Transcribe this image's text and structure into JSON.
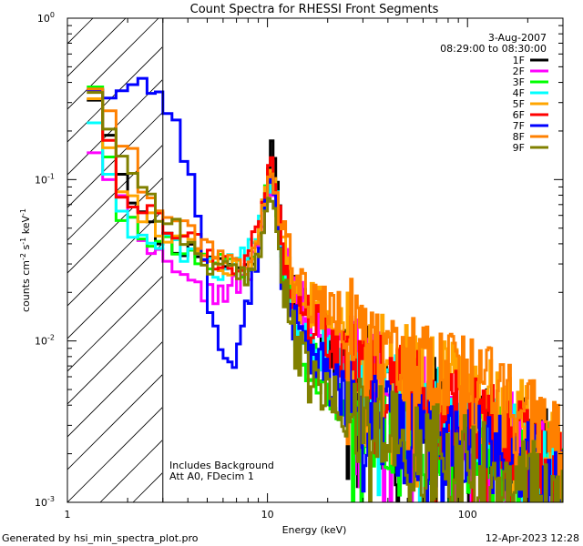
{
  "chart_data": {
    "type": "line",
    "title": "Count Spectra for RHESSI Front Segments",
    "xlabel": "Energy (keV)",
    "ylabel_main": "counts cm",
    "ylabel_exp1": "-2",
    "ylabel_mid": " s",
    "ylabel_exp2": "-1",
    "ylabel_end": " keV",
    "ylabel_exp3": "-1",
    "xscale": "log",
    "yscale": "log",
    "xlim": [
      1,
      300
    ],
    "ylim": [
      0.001,
      1
    ],
    "x_ticks": [
      {
        "value": 1,
        "label": "1"
      },
      {
        "value": 10,
        "label": "10"
      },
      {
        "value": 100,
        "label": "100"
      }
    ],
    "y_ticks": [
      {
        "value": 0.001,
        "base": "10",
        "exp": "-3"
      },
      {
        "value": 0.01,
        "base": "10",
        "exp": "-2"
      },
      {
        "value": 0.1,
        "base": "10",
        "exp": "-1"
      },
      {
        "value": 1,
        "base": "10",
        "exp": "0"
      }
    ],
    "hatched_region": [
      1,
      3
    ],
    "date": "3-Aug-2007",
    "time_range": "08:29:00 to 08:30:00",
    "annotations": [
      "Includes Background",
      "Att A0, FDecim 1"
    ],
    "legend_position": "top-right",
    "series": [
      {
        "name": "1F",
        "color": "#000000",
        "seed": 11,
        "jitter": 1.0,
        "bump": 1.0,
        "points": [
          [
            1.25,
            0.35
          ],
          [
            1.5,
            0.33
          ],
          [
            1.75,
            0.13
          ],
          [
            2.0,
            0.1
          ],
          [
            2.5,
            0.05
          ],
          [
            3.0,
            0.045
          ],
          [
            3.5,
            0.04
          ],
          [
            4.0,
            0.036
          ],
          [
            5.0,
            0.036
          ],
          [
            6.0,
            0.03
          ],
          [
            7.0,
            0.03
          ],
          [
            8.0,
            0.027
          ],
          [
            9.0,
            0.045
          ],
          [
            10.0,
            0.11
          ],
          [
            10.5,
            0.15
          ],
          [
            11.0,
            0.11
          ],
          [
            12.0,
            0.032
          ],
          [
            14.0,
            0.016
          ],
          [
            16.0,
            0.014
          ],
          [
            20.0,
            0.01
          ],
          [
            25.0,
            0.0075
          ],
          [
            30.0,
            0.0065
          ],
          [
            40.0,
            0.0055
          ],
          [
            50.0,
            0.0048
          ],
          [
            60.0,
            0.0042
          ],
          [
            80.0,
            0.004
          ],
          [
            100.0,
            0.0035
          ],
          [
            150.0,
            0.0025
          ],
          [
            200.0,
            0.0022
          ],
          [
            250.0,
            0.0019
          ],
          [
            300.0,
            0.0016
          ]
        ]
      },
      {
        "name": "2F",
        "color": "#ff00ff",
        "seed": 22,
        "jitter": 1.0,
        "bump": 0.85,
        "points": [
          [
            1.25,
            0.16
          ],
          [
            1.5,
            0.16
          ],
          [
            1.75,
            0.075
          ],
          [
            2.0,
            0.065
          ],
          [
            2.5,
            0.045
          ],
          [
            3.0,
            0.03
          ],
          [
            3.5,
            0.025
          ],
          [
            4.0,
            0.022
          ],
          [
            5.0,
            0.02
          ],
          [
            6.0,
            0.02
          ],
          [
            7.0,
            0.022
          ],
          [
            8.0,
            0.025
          ],
          [
            9.0,
            0.04
          ],
          [
            10.0,
            0.08
          ],
          [
            10.5,
            0.1
          ],
          [
            11.0,
            0.08
          ],
          [
            12.0,
            0.03
          ],
          [
            14.0,
            0.018
          ],
          [
            16.0,
            0.015
          ],
          [
            20.0,
            0.011
          ],
          [
            25.0,
            0.008
          ],
          [
            30.0,
            0.007
          ],
          [
            40.0,
            0.0058
          ],
          [
            50.0,
            0.005
          ],
          [
            60.0,
            0.0044
          ],
          [
            80.0,
            0.004
          ],
          [
            100.0,
            0.0036
          ],
          [
            150.0,
            0.0026
          ],
          [
            200.0,
            0.0022
          ],
          [
            250.0,
            0.0018
          ],
          [
            300.0,
            0.0015
          ]
        ]
      },
      {
        "name": "3F",
        "color": "#00ff00",
        "seed": 33,
        "jitter": 1.0,
        "bump": 0.8,
        "points": [
          [
            1.25,
            0.42
          ],
          [
            1.5,
            0.4
          ],
          [
            1.75,
            0.06
          ],
          [
            2.0,
            0.055
          ],
          [
            2.5,
            0.042
          ],
          [
            3.0,
            0.04
          ],
          [
            3.5,
            0.037
          ],
          [
            4.0,
            0.034
          ],
          [
            5.0,
            0.03
          ],
          [
            6.0,
            0.03
          ],
          [
            7.0,
            0.028
          ],
          [
            8.0,
            0.025
          ],
          [
            9.0,
            0.04
          ],
          [
            10.0,
            0.09
          ],
          [
            10.5,
            0.11
          ],
          [
            11.0,
            0.08
          ],
          [
            12.0,
            0.03
          ],
          [
            14.0,
            0.012
          ],
          [
            16.0,
            0.008
          ],
          [
            20.0,
            0.005
          ],
          [
            25.0,
            0.004
          ],
          [
            30.0,
            0.0035
          ],
          [
            40.0,
            0.003
          ],
          [
            50.0,
            0.0028
          ],
          [
            60.0,
            0.0026
          ],
          [
            80.0,
            0.0025
          ],
          [
            100.0,
            0.0024
          ],
          [
            150.0,
            0.002
          ],
          [
            200.0,
            0.0018
          ],
          [
            250.0,
            0.0016
          ],
          [
            300.0,
            0.0014
          ]
        ]
      },
      {
        "name": "4F",
        "color": "#00ffff",
        "seed": 44,
        "jitter": 1.0,
        "bump": 0.9,
        "points": [
          [
            1.25,
            0.25
          ],
          [
            1.5,
            0.24
          ],
          [
            1.75,
            0.06
          ],
          [
            2.0,
            0.05
          ],
          [
            2.5,
            0.04
          ],
          [
            3.0,
            0.04
          ],
          [
            3.5,
            0.037
          ],
          [
            4.0,
            0.035
          ],
          [
            5.0,
            0.03
          ],
          [
            6.0,
            0.028
          ],
          [
            7.0,
            0.03
          ],
          [
            8.0,
            0.035
          ],
          [
            9.0,
            0.05
          ],
          [
            10.0,
            0.09
          ],
          [
            10.5,
            0.11
          ],
          [
            11.0,
            0.09
          ],
          [
            12.0,
            0.03
          ],
          [
            14.0,
            0.013
          ],
          [
            16.0,
            0.011
          ],
          [
            20.0,
            0.008
          ],
          [
            25.0,
            0.006
          ],
          [
            30.0,
            0.005
          ],
          [
            40.0,
            0.0045
          ],
          [
            50.0,
            0.004
          ],
          [
            60.0,
            0.0036
          ],
          [
            80.0,
            0.0033
          ],
          [
            100.0,
            0.003
          ],
          [
            150.0,
            0.0025
          ],
          [
            200.0,
            0.002
          ],
          [
            250.0,
            0.0017
          ],
          [
            300.0,
            0.0015
          ]
        ]
      },
      {
        "name": "5F",
        "color": "#ffa500",
        "seed": 55,
        "jitter": 1.0,
        "bump": 0.9,
        "points": [
          [
            1.25,
            0.35
          ],
          [
            1.5,
            0.34
          ],
          [
            1.75,
            0.09
          ],
          [
            2.0,
            0.08
          ],
          [
            2.5,
            0.06
          ],
          [
            3.0,
            0.05
          ],
          [
            3.5,
            0.045
          ],
          [
            4.0,
            0.04
          ],
          [
            5.0,
            0.035
          ],
          [
            6.0,
            0.03
          ],
          [
            7.0,
            0.028
          ],
          [
            8.0,
            0.028
          ],
          [
            9.0,
            0.045
          ],
          [
            10.0,
            0.09
          ],
          [
            10.5,
            0.11
          ],
          [
            11.0,
            0.09
          ],
          [
            12.0,
            0.035
          ],
          [
            14.0,
            0.02
          ],
          [
            16.0,
            0.017
          ],
          [
            20.0,
            0.013
          ],
          [
            25.0,
            0.01
          ],
          [
            30.0,
            0.009
          ],
          [
            40.0,
            0.0075
          ],
          [
            50.0,
            0.0065
          ],
          [
            60.0,
            0.0055
          ],
          [
            80.0,
            0.005
          ],
          [
            100.0,
            0.0045
          ],
          [
            150.0,
            0.0035
          ],
          [
            200.0,
            0.0028
          ],
          [
            250.0,
            0.0022
          ],
          [
            300.0,
            0.0018
          ]
        ]
      },
      {
        "name": "6F",
        "color": "#ff0000",
        "seed": 66,
        "jitter": 1.0,
        "bump": 0.9,
        "points": [
          [
            1.25,
            0.4
          ],
          [
            1.5,
            0.38
          ],
          [
            1.75,
            0.1
          ],
          [
            2.0,
            0.085
          ],
          [
            2.5,
            0.06
          ],
          [
            3.0,
            0.055
          ],
          [
            3.5,
            0.05
          ],
          [
            4.0,
            0.045
          ],
          [
            5.0,
            0.035
          ],
          [
            6.0,
            0.03
          ],
          [
            7.0,
            0.03
          ],
          [
            8.0,
            0.032
          ],
          [
            9.0,
            0.05
          ],
          [
            10.0,
            0.1
          ],
          [
            10.5,
            0.12
          ],
          [
            11.0,
            0.1
          ],
          [
            12.0,
            0.035
          ],
          [
            14.0,
            0.016
          ],
          [
            16.0,
            0.013
          ],
          [
            20.0,
            0.01
          ],
          [
            25.0,
            0.008
          ],
          [
            30.0,
            0.007
          ],
          [
            40.0,
            0.0058
          ],
          [
            50.0,
            0.005
          ],
          [
            60.0,
            0.0044
          ],
          [
            80.0,
            0.004
          ],
          [
            100.0,
            0.0035
          ],
          [
            150.0,
            0.0027
          ],
          [
            200.0,
            0.0022
          ],
          [
            250.0,
            0.0019
          ],
          [
            300.0,
            0.0016
          ]
        ]
      },
      {
        "name": "7F",
        "color": "#0000ff",
        "seed": 77,
        "jitter": 1.0,
        "bump": 0.75,
        "points": [
          [
            1.25,
            0.4
          ],
          [
            1.5,
            0.38
          ],
          [
            1.75,
            0.32
          ],
          [
            2.0,
            0.38
          ],
          [
            2.5,
            0.4
          ],
          [
            3.0,
            0.33
          ],
          [
            3.5,
            0.22
          ],
          [
            4.0,
            0.13
          ],
          [
            4.5,
            0.06
          ],
          [
            5.0,
            0.02
          ],
          [
            5.5,
            0.012
          ],
          [
            6.0,
            0.008
          ],
          [
            7.0,
            0.007
          ],
          [
            8.0,
            0.018
          ],
          [
            9.0,
            0.035
          ],
          [
            10.0,
            0.08
          ],
          [
            10.5,
            0.1
          ],
          [
            11.0,
            0.07
          ],
          [
            12.0,
            0.02
          ],
          [
            14.0,
            0.012
          ],
          [
            16.0,
            0.009
          ],
          [
            20.0,
            0.006
          ],
          [
            25.0,
            0.004
          ],
          [
            30.0,
            0.0035
          ],
          [
            40.0,
            0.003
          ],
          [
            50.0,
            0.0027
          ],
          [
            60.0,
            0.0025
          ],
          [
            80.0,
            0.0023
          ],
          [
            100.0,
            0.0022
          ],
          [
            150.0,
            0.0018
          ],
          [
            200.0,
            0.0016
          ],
          [
            250.0,
            0.0014
          ],
          [
            300.0,
            0.0012
          ]
        ]
      },
      {
        "name": "8F",
        "color": "#ff8000",
        "seed": 88,
        "jitter": 1.0,
        "bump": 0.85,
        "points": [
          [
            1.25,
            0.4
          ],
          [
            1.5,
            0.39
          ],
          [
            1.75,
            0.22
          ],
          [
            2.0,
            0.16
          ],
          [
            2.5,
            0.085
          ],
          [
            3.0,
            0.065
          ],
          [
            3.5,
            0.06
          ],
          [
            4.0,
            0.05
          ],
          [
            5.0,
            0.04
          ],
          [
            6.0,
            0.035
          ],
          [
            7.0,
            0.03
          ],
          [
            8.0,
            0.03
          ],
          [
            9.0,
            0.045
          ],
          [
            10.0,
            0.09
          ],
          [
            10.5,
            0.11
          ],
          [
            11.0,
            0.09
          ],
          [
            12.0,
            0.04
          ],
          [
            14.0,
            0.022
          ],
          [
            16.0,
            0.02
          ],
          [
            20.0,
            0.016
          ],
          [
            25.0,
            0.013
          ],
          [
            30.0,
            0.011
          ],
          [
            40.0,
            0.009
          ],
          [
            50.0,
            0.0075
          ],
          [
            60.0,
            0.0065
          ],
          [
            80.0,
            0.006
          ],
          [
            100.0,
            0.0055
          ],
          [
            150.0,
            0.0042
          ],
          [
            200.0,
            0.0032
          ],
          [
            250.0,
            0.0025
          ],
          [
            300.0,
            0.002
          ]
        ]
      },
      {
        "name": "9F",
        "color": "#808000",
        "seed": 99,
        "jitter": 1.0,
        "bump": 0.7,
        "points": [
          [
            1.25,
            0.38
          ],
          [
            1.5,
            0.37
          ],
          [
            1.75,
            0.14
          ],
          [
            2.0,
            0.13
          ],
          [
            2.5,
            0.085
          ],
          [
            3.0,
            0.06
          ],
          [
            3.5,
            0.05
          ],
          [
            4.0,
            0.04
          ],
          [
            5.0,
            0.03
          ],
          [
            6.0,
            0.028
          ],
          [
            7.0,
            0.025
          ],
          [
            8.0,
            0.024
          ],
          [
            9.0,
            0.035
          ],
          [
            10.0,
            0.07
          ],
          [
            10.5,
            0.08
          ],
          [
            11.0,
            0.06
          ],
          [
            12.0,
            0.02
          ],
          [
            14.0,
            0.009
          ],
          [
            16.0,
            0.006
          ],
          [
            20.0,
            0.0045
          ],
          [
            25.0,
            0.0035
          ],
          [
            30.0,
            0.003
          ],
          [
            40.0,
            0.0026
          ],
          [
            50.0,
            0.0023
          ],
          [
            60.0,
            0.0021
          ],
          [
            80.0,
            0.002
          ],
          [
            100.0,
            0.0018
          ],
          [
            150.0,
            0.0015
          ],
          [
            200.0,
            0.0013
          ],
          [
            250.0,
            0.0012
          ],
          [
            300.0,
            0.0011
          ]
        ]
      }
    ]
  },
  "footer": {
    "generated": "Generated by hsi_min_spectra_plot.pro",
    "timestamp": "12-Apr-2023 12:28"
  },
  "colors": {
    "background": "#ffffff",
    "axis": "#000000"
  }
}
